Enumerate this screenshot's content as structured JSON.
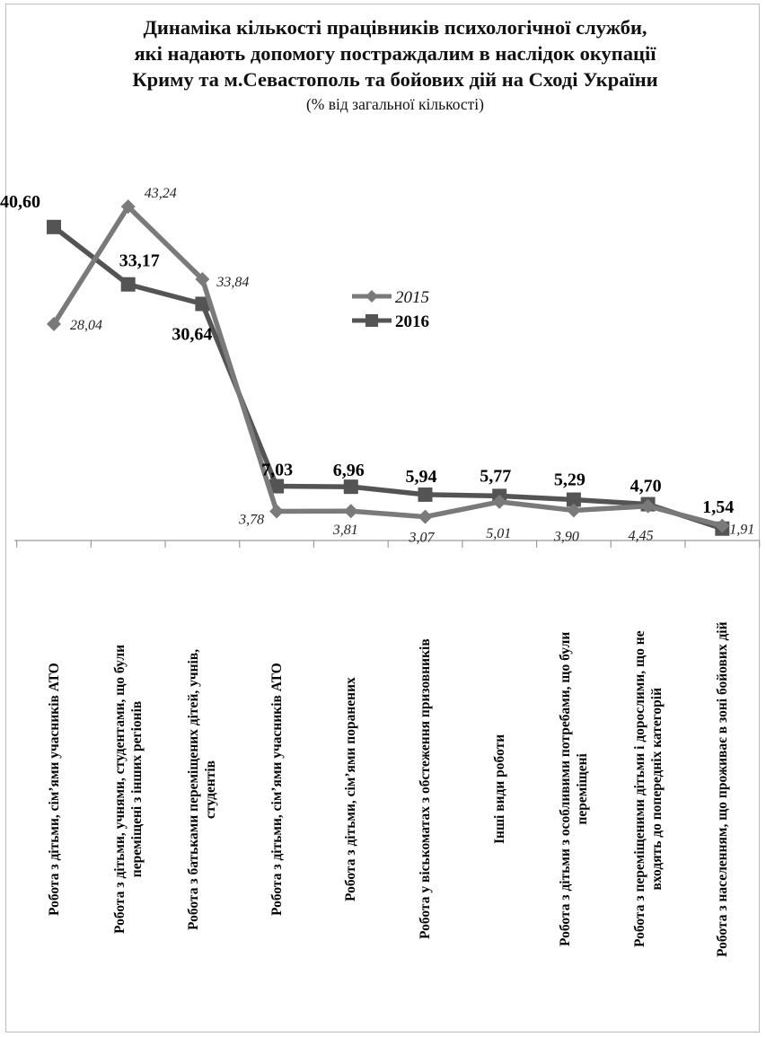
{
  "chart_data": {
    "type": "line",
    "title": "Динаміка кількості працівників психологічної служби, які надають допомогу постраждалим в наслідок окупації Криму та м.Севастополь та бойових дій на Сході України",
    "title_lines": [
      "Динаміка кількості працівників психологічної служби,",
      "які надають допомогу постраждалим в наслідок окупації",
      "Криму та м.Севастополь та бойових дій на Сході України"
    ],
    "subtitle": "(% від загальної кількості)",
    "categories": [
      "Робота з дітьми, сім’ями учасників АТО",
      "Робота з дітьми, учнями, студентами, що були переміщені з інших регіонів",
      "Робота з батьками переміщених дітей, учнів, студентів",
      "Робота з дітьми, сім’ями учасників АТО",
      "Робота з дітьми, сім’ями поранених",
      "Робота у віськоматах з обстеження призовників",
      "Інші види роботи",
      "Робота з дітьми з особливими потребами, що були переміщені",
      "Робота з переміщеними дітьми і дорослими, що не входять до попередніх категорій",
      "Робота з населенням, що проживає в зоні бойових дій"
    ],
    "category_lines": [
      [
        "Робота з дітьми, сім’ями учасників АТО"
      ],
      [
        "Робота з дітьми, учнями, студентами, що були",
        "переміщені з інших регіонів"
      ],
      [
        "Робота з батьками переміщених дітей, учнів,",
        "студентів"
      ],
      [
        "Робота з дітьми, сім’ями учасників АТО"
      ],
      [
        "Робота з дітьми, сім’ями поранених"
      ],
      [
        "Робота у віськоматах з обстеження призовників"
      ],
      [
        "Інші види роботи"
      ],
      [
        "Робота з дітьми з особливими потребами, що були",
        "переміщені"
      ],
      [
        "Робота з переміщеними дітьми і дорослими, що не",
        "входять до попередніх категорій"
      ],
      [
        "Робота з населенням, що проживає в зоні бойових дій"
      ]
    ],
    "series": [
      {
        "name": "2015",
        "values": [
          28.04,
          43.24,
          33.84,
          3.78,
          3.81,
          3.07,
          5.01,
          3.9,
          4.45,
          1.91
        ],
        "labels": [
          "28,04",
          "43,24",
          "33,84",
          "3,78",
          "3,81",
          "3,07",
          "5,01",
          "3,90",
          "4,45",
          "1,91"
        ],
        "color": "#7a7a7a",
        "marker": "diamond"
      },
      {
        "name": "2016",
        "values": [
          40.6,
          33.17,
          30.64,
          7.03,
          6.96,
          5.94,
          5.77,
          5.29,
          4.7,
          1.54
        ],
        "labels": [
          "40,60",
          "33,17",
          "30,64",
          "7,03",
          "6,96",
          "5,94",
          "5,77",
          "5,29",
          "4,70",
          "1,54"
        ],
        "color": "#545454",
        "marker": "square"
      }
    ],
    "ylim": [
      0,
      50
    ],
    "grid": false,
    "legend": "center-right"
  }
}
